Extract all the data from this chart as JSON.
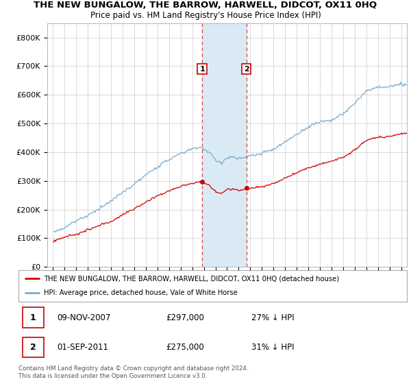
{
  "title": "THE NEW BUNGALOW, THE BARROW, HARWELL, DIDCOT, OX11 0HQ",
  "subtitle": "Price paid vs. HM Land Registry's House Price Index (HPI)",
  "red_label": "THE NEW BUNGALOW, THE BARROW, HARWELL, DIDCOT, OX11 0HQ (detached house)",
  "blue_label": "HPI: Average price, detached house, Vale of White Horse",
  "transaction1_date": "09-NOV-2007",
  "transaction1_price": "£297,000",
  "transaction1_hpi": "27% ↓ HPI",
  "transaction2_date": "01-SEP-2011",
  "transaction2_price": "£275,000",
  "transaction2_hpi": "31% ↓ HPI",
  "footnote": "Contains HM Land Registry data © Crown copyright and database right 2024.\nThis data is licensed under the Open Government Licence v3.0.",
  "shade_x1_start": 2007.85,
  "shade_x1_end": 2011.67,
  "marker1_x": 2007.85,
  "marker1_y": 297000,
  "marker2_x": 2011.67,
  "marker2_y": 275000,
  "ylim": [
    0,
    850000
  ],
  "xlim_start": 1994.5,
  "xlim_end": 2025.5,
  "red_color": "#cc0000",
  "blue_color": "#7aabcc",
  "shade_color": "#daeaf5"
}
